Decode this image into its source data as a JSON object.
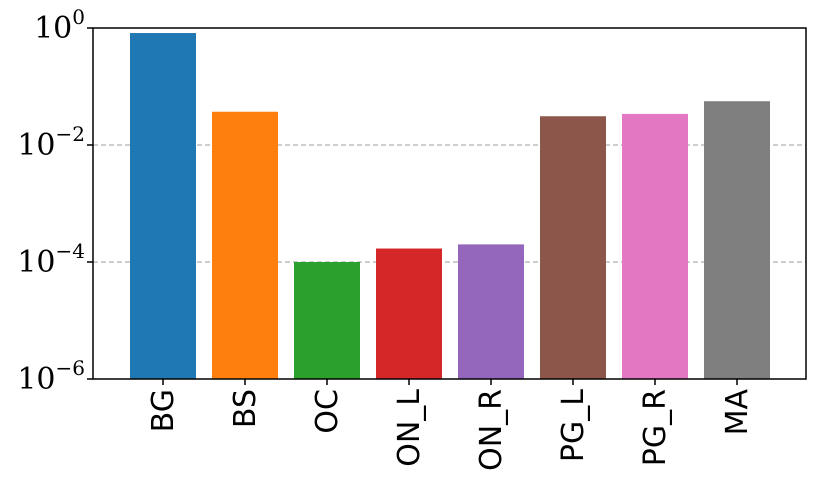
{
  "chart_data": {
    "type": "bar",
    "categories": [
      "BG",
      "BS",
      "OC",
      "ON_L",
      "ON_R",
      "PG_L",
      "PG_R",
      "MA"
    ],
    "values": [
      0.82,
      0.037,
      0.0001,
      0.00017,
      0.0002,
      0.031,
      0.034,
      0.056
    ],
    "colors": [
      "#1f77b4",
      "#ff7f0e",
      "#2ca02c",
      "#d62728",
      "#9467bd",
      "#8c564b",
      "#e377c2",
      "#7f7f7f"
    ],
    "yscale": "log",
    "ylim": [
      1e-06,
      1
    ],
    "yticks": [
      {
        "base": "10",
        "exp": "0"
      },
      {
        "base": "10",
        "exp": "−2"
      },
      {
        "base": "10",
        "exp": "−4"
      },
      {
        "base": "10",
        "exp": "−6"
      }
    ],
    "grid": "horizontal dashed",
    "title": "",
    "xlabel": "",
    "ylabel": ""
  }
}
